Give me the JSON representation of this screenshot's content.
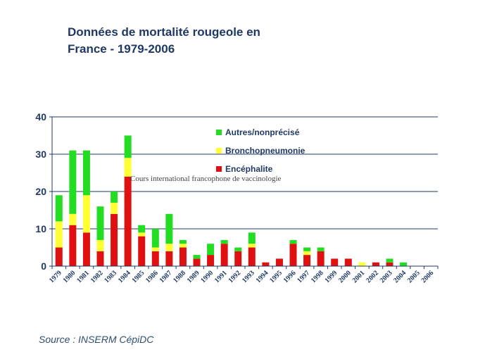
{
  "title_line1": "Données de mortalité rougeole en",
  "title_line2": "France - 1979-2006",
  "source": "Source : INSERM  CépiDC",
  "watermark": "Cours international  francophone de vaccinologie",
  "colors": {
    "encephalite": "#e01010",
    "broncho": "#ffff33",
    "autres": "#22dd22",
    "grid": "#1f3864",
    "axis_text": "#1f3864"
  },
  "chart_data": {
    "type": "bar",
    "stacked": true,
    "categories": [
      "1979",
      "1980",
      "1981",
      "1982",
      "1983",
      "1984",
      "1985",
      "1986",
      "1987",
      "1988",
      "1989",
      "1990",
      "1991",
      "1992",
      "1993",
      "1994",
      "1995",
      "1996",
      "1997",
      "1998",
      "1999",
      "2000",
      "2001",
      "2002",
      "2003",
      "2004",
      "2005",
      "2006"
    ],
    "series": [
      {
        "name": "Encéphalite",
        "color_key": "encephalite",
        "values": [
          5,
          11,
          9,
          4,
          14,
          24,
          8,
          4,
          4,
          5,
          2,
          3,
          6,
          4,
          5,
          1,
          2,
          6,
          3,
          4,
          2,
          2,
          0,
          1,
          1,
          0,
          0,
          0
        ]
      },
      {
        "name": "Bronchopneumonie",
        "color_key": "broncho",
        "values": [
          7,
          3,
          10,
          3,
          3,
          5,
          1,
          1,
          2,
          1,
          0,
          0,
          0,
          0,
          1,
          0,
          0,
          0,
          1,
          0,
          0,
          0,
          1,
          0,
          0,
          0,
          0,
          0
        ]
      },
      {
        "name": "Autres/nonprécisé",
        "color_key": "autres",
        "values": [
          7,
          17,
          12,
          9,
          3,
          6,
          2,
          5,
          8,
          1,
          1,
          3,
          1,
          1,
          3,
          0,
          0,
          1,
          1,
          1,
          0,
          0,
          0,
          0,
          1,
          1,
          0,
          0
        ]
      }
    ],
    "legend_order": [
      "Autres/nonprécisé",
      "Bronchopneumonie",
      "Encéphalite"
    ],
    "yticks": [
      0,
      10,
      20,
      30,
      40
    ],
    "ylim": [
      0,
      40
    ],
    "xlabel": "",
    "ylabel": "",
    "grid": true,
    "legend_position": "top-center"
  }
}
